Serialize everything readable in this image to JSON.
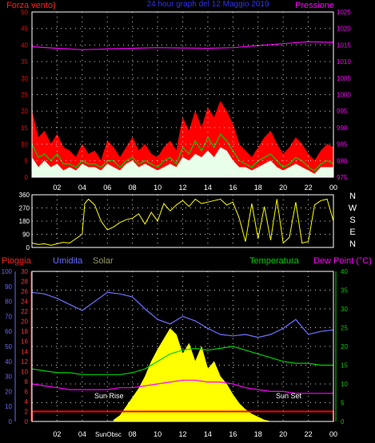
{
  "colors": {
    "background": "#000000",
    "frame": "#ffffff",
    "grid": "#ffffff",
    "wind_gust": "#ff0000",
    "wind_avg": "#00d000",
    "wind_speed": "#e8ffe8",
    "pressure": "#ff00ff",
    "direction": "#ffff00",
    "rain": "#ff0000",
    "humidity": "#7070ff",
    "solar": "#ffff00",
    "temperature": "#00d000",
    "dewpoint": "#ff00ff",
    "rain_axis": "#ff3030",
    "humidity_axis": "#6a6aff",
    "temp_axis": "#00d000",
    "label_title": "#3030ff",
    "label_wind": "#ff2020",
    "label_pressure": "#ff00ff",
    "label_solar": "#999966",
    "label_dew": "#ff00ff"
  },
  "labels": {
    "title": "24 hour graph del 12 Maggio 2019",
    "wind": "Forza vento)",
    "pressure": "Pressione",
    "rain": "Pioggia",
    "humidity": "Umidita",
    "solar": "Solar",
    "temperature": "Temperatura",
    "dewpoint": "Dew Point (°C)",
    "sunrise": "Sun Rise",
    "sunset": "Sun Set",
    "sunobsc": "SunObsc",
    "compass": [
      "N",
      "W",
      "S",
      "E",
      "N"
    ]
  },
  "chart_data": [
    {
      "type": "area",
      "name": "wind",
      "x_ticks": [
        "02",
        "04",
        "06",
        "08",
        "10",
        "12",
        "14",
        "16",
        "18",
        "20",
        "22",
        "00"
      ],
      "y_left": {
        "min": 0,
        "max": 50,
        "ticks": [
          0,
          5,
          10,
          15,
          20,
          25,
          30,
          35,
          40,
          45,
          50
        ]
      },
      "y_right": {
        "min": 975,
        "max": 1025,
        "ticks": [
          975,
          980,
          985,
          990,
          995,
          1000,
          1005,
          1010,
          1015,
          1020,
          1025
        ]
      },
      "series": [
        {
          "name": "Forza vento)",
          "role": "gust",
          "x": [
            0,
            0.5,
            1,
            1.5,
            2,
            2.5,
            3,
            3.5,
            4,
            4.5,
            5,
            5.5,
            6,
            6.5,
            7,
            7.5,
            8,
            8.5,
            9,
            9.5,
            10,
            10.5,
            11,
            11.5,
            12,
            12.5,
            13,
            13.5,
            14,
            14.5,
            15,
            15.5,
            16,
            16.5,
            17,
            17.5,
            18,
            18.5,
            19,
            19.5,
            20,
            20.5,
            21,
            21.5,
            22,
            22.5,
            23,
            23.5,
            24
          ],
          "values": [
            20,
            12,
            14,
            10,
            13,
            9,
            8,
            6,
            10,
            7,
            8,
            5,
            11,
            9,
            6,
            9,
            12,
            8,
            10,
            7,
            6,
            9,
            11,
            8,
            18,
            14,
            20,
            15,
            21,
            18,
            23,
            20,
            16,
            10,
            8,
            6,
            9,
            12,
            14,
            10,
            7,
            9,
            12,
            10,
            7,
            5,
            8,
            10,
            9
          ]
        },
        {
          "name": "avg",
          "role": "average",
          "x": [
            0,
            0.5,
            1,
            1.5,
            2,
            2.5,
            3,
            3.5,
            4,
            4.5,
            5,
            5.5,
            6,
            6.5,
            7,
            7.5,
            8,
            8.5,
            9,
            9.5,
            10,
            10.5,
            11,
            11.5,
            12,
            12.5,
            13,
            13.5,
            14,
            14.5,
            15,
            15.5,
            16,
            16.5,
            17,
            17.5,
            18,
            18.5,
            19,
            19.5,
            20,
            20.5,
            21,
            21.5,
            22,
            22.5,
            23,
            23.5,
            24
          ],
          "values": [
            10,
            6,
            7,
            5,
            7,
            4,
            4,
            3,
            5,
            4,
            4,
            3,
            5,
            5,
            3,
            5,
            6,
            4,
            5,
            4,
            3,
            5,
            6,
            4,
            9,
            7,
            11,
            8,
            12,
            9,
            13,
            11,
            8,
            5,
            4,
            3,
            5,
            6,
            7,
            5,
            3,
            4,
            6,
            5,
            3,
            2,
            4,
            5,
            4
          ]
        },
        {
          "name": "speed",
          "role": "speed",
          "x": [
            0,
            0.5,
            1,
            1.5,
            2,
            2.5,
            3,
            3.5,
            4,
            4.5,
            5,
            5.5,
            6,
            6.5,
            7,
            7.5,
            8,
            8.5,
            9,
            9.5,
            10,
            10.5,
            11,
            11.5,
            12,
            12.5,
            13,
            13.5,
            14,
            14.5,
            15,
            15.5,
            16,
            16.5,
            17,
            17.5,
            18,
            18.5,
            19,
            19.5,
            20,
            20.5,
            21,
            21.5,
            22,
            22.5,
            23,
            23.5,
            24
          ],
          "values": [
            6,
            3,
            5,
            3,
            4,
            2,
            3,
            2,
            4,
            3,
            3,
            2,
            4,
            3,
            2,
            4,
            5,
            3,
            4,
            3,
            2,
            3,
            4,
            3,
            6,
            5,
            7,
            6,
            8,
            6,
            9,
            8,
            5,
            3,
            3,
            2,
            3,
            4,
            5,
            3,
            2,
            3,
            4,
            3,
            2,
            1,
            3,
            3,
            3
          ]
        },
        {
          "name": "Pressione",
          "role": "pressure",
          "axis": "right",
          "x": [
            0,
            2,
            4,
            6,
            8,
            10,
            12,
            14,
            16,
            18,
            20,
            22,
            24
          ],
          "values": [
            1014.5,
            1014.0,
            1013.6,
            1013.8,
            1014.0,
            1014.2,
            1014.1,
            1014.0,
            1014.2,
            1014.8,
            1015.4,
            1016.0,
            1015.8
          ]
        }
      ]
    },
    {
      "type": "line",
      "name": "direction",
      "y_left": {
        "min": 0,
        "max": 360,
        "ticks": [
          0,
          90,
          180,
          270,
          360
        ]
      },
      "series": [
        {
          "name": "direction",
          "x": [
            0,
            0.5,
            1,
            1.5,
            2,
            2.5,
            3,
            3.5,
            4,
            4.2,
            4.5,
            5,
            5.5,
            6,
            6.5,
            7,
            7.5,
            8,
            8.5,
            9,
            9.5,
            10,
            10.5,
            11,
            11.5,
            12,
            12.5,
            13,
            13.5,
            14,
            14.5,
            15,
            15.5,
            16,
            16.5,
            17,
            17.5,
            18,
            18.5,
            19,
            19.5,
            20,
            20.5,
            21,
            21.5,
            22,
            22.5,
            23,
            23.5,
            24
          ],
          "values": [
            30,
            20,
            25,
            15,
            25,
            35,
            30,
            60,
            90,
            300,
            330,
            290,
            180,
            120,
            140,
            170,
            190,
            200,
            230,
            160,
            240,
            180,
            300,
            250,
            290,
            320,
            280,
            330,
            300,
            310,
            320,
            330,
            290,
            310,
            200,
            40,
            300,
            60,
            280,
            50,
            330,
            30,
            70,
            310,
            30,
            40,
            290,
            320,
            330,
            180
          ]
        }
      ]
    },
    {
      "type": "line",
      "name": "multi",
      "y_rain": {
        "min": 0,
        "max": 30,
        "ticks": [
          0,
          2,
          4,
          6,
          8,
          10,
          12,
          14,
          16,
          18,
          20,
          22,
          24,
          26,
          28,
          30
        ]
      },
      "y_hum": {
        "min": 0,
        "max": 100,
        "ticks": [
          0,
          10,
          20,
          30,
          40,
          50,
          60,
          70,
          80,
          90,
          100
        ]
      },
      "y_temp": {
        "min": 0,
        "max": 40,
        "ticks": [
          0,
          5,
          10,
          15,
          20,
          25,
          30,
          35,
          40
        ]
      },
      "series": [
        {
          "name": "Pioggia",
          "axis": "rain",
          "x": [
            0,
            24
          ],
          "values": [
            2,
            2
          ]
        },
        {
          "name": "Umidita",
          "axis": "hum",
          "x": [
            0,
            1,
            2,
            3,
            4,
            5,
            6,
            7,
            8,
            9,
            10,
            11,
            12,
            13,
            14,
            15,
            16,
            17,
            18,
            19,
            20,
            21,
            22,
            23,
            24
          ],
          "values": [
            86,
            85,
            82,
            78,
            74,
            80,
            86,
            85,
            83,
            75,
            68,
            65,
            70,
            67,
            62,
            58,
            57,
            58,
            56,
            58,
            62,
            68,
            58,
            60,
            61
          ]
        },
        {
          "name": "Temperatura",
          "axis": "temp",
          "x": [
            0,
            1,
            2,
            3,
            4,
            5,
            6,
            7,
            8,
            9,
            10,
            11,
            12,
            13,
            14,
            15,
            16,
            17,
            18,
            19,
            20,
            21,
            22,
            23,
            24
          ],
          "values": [
            14,
            13.5,
            13,
            13,
            12.5,
            12.5,
            12.5,
            12.5,
            13,
            14,
            16,
            18,
            19,
            19.5,
            19,
            19.5,
            20,
            19,
            18,
            17,
            16,
            15.5,
            15.5,
            15,
            15
          ]
        },
        {
          "name": "Dew Point (°C)",
          "axis": "temp",
          "x": [
            0,
            1,
            2,
            3,
            4,
            5,
            6,
            7,
            8,
            9,
            10,
            11,
            12,
            13,
            14,
            15,
            16,
            17,
            18,
            19,
            20,
            21,
            22,
            23,
            24
          ],
          "values": [
            10,
            9.5,
            9,
            8.5,
            8.5,
            8.5,
            8.5,
            9,
            9,
            9.5,
            10,
            10.5,
            11,
            11,
            10.5,
            10.5,
            10,
            9,
            8.5,
            8,
            8,
            7.5,
            7.5,
            7.5,
            7.5
          ]
        },
        {
          "name": "Solar",
          "axis": "hum",
          "x": [
            6.5,
            7,
            7.5,
            8,
            8.5,
            9,
            9.5,
            10,
            10.5,
            11,
            11.5,
            12,
            12.5,
            13,
            13.5,
            14,
            14.5,
            15,
            15.5,
            16,
            16.5,
            17,
            17.5,
            18,
            18.5,
            19
          ],
          "values": [
            1,
            4,
            10,
            16,
            22,
            30,
            40,
            48,
            55,
            62,
            58,
            45,
            52,
            40,
            50,
            35,
            40,
            30,
            25,
            18,
            12,
            8,
            5,
            3,
            1,
            0
          ]
        }
      ]
    }
  ]
}
